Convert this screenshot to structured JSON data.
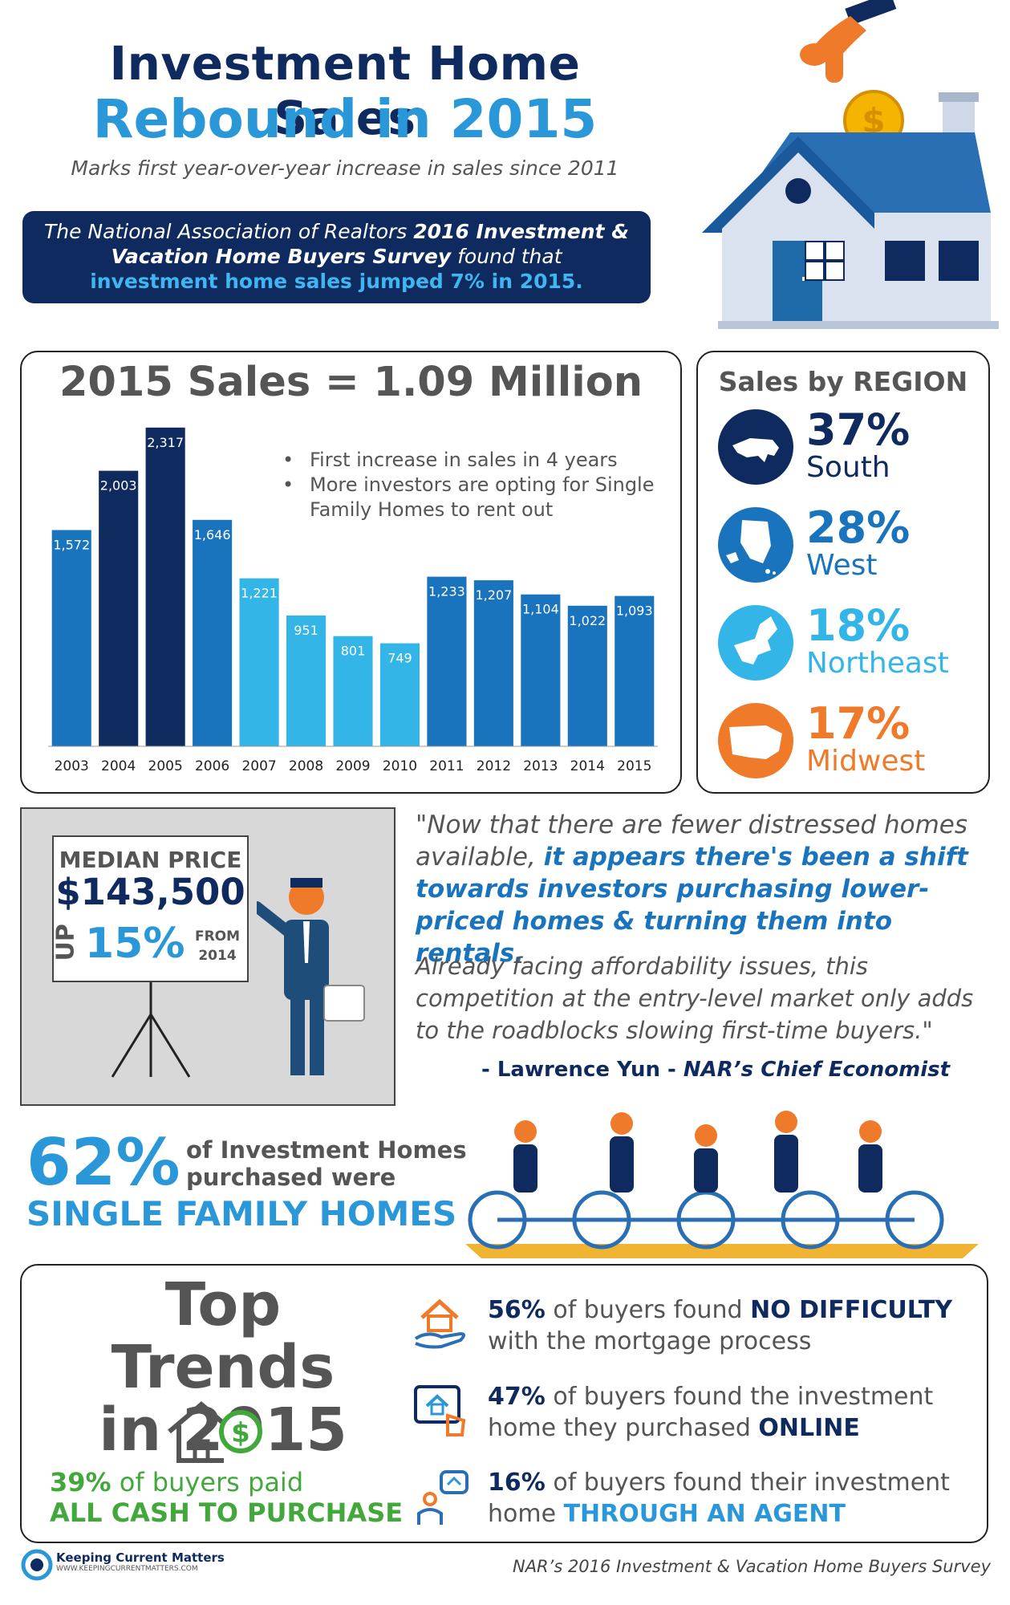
{
  "header": {
    "title": "Investment Home Sales",
    "subtitle": "Rebound in 2015",
    "tagline": "Marks first year-over-year increase in sales since 2011"
  },
  "banner": {
    "line1_a": "The National Association of Realtors ",
    "line1_b": "2016 Investment &",
    "line2_a": "Vacation Home Buyers Survey",
    "line2_b": " found that",
    "line3": "investment home sales jumped 7% in 2015."
  },
  "sales_panel": {
    "title": "2015 Sales = 1.09 Million",
    "notes": [
      "First increase in sales in 4 years",
      "More investors are opting for Single Family Homes to rent out"
    ]
  },
  "chart_data": {
    "type": "bar",
    "categories": [
      "2003",
      "2004",
      "2005",
      "2006",
      "2007",
      "2008",
      "2009",
      "2010",
      "2011",
      "2012",
      "2013",
      "2014",
      "2015"
    ],
    "values": [
      1572,
      2003,
      2317,
      1646,
      1221,
      951,
      801,
      749,
      1233,
      1207,
      1104,
      1022,
      1093
    ],
    "labels": [
      "1,572",
      "2,003",
      "2,317",
      "1,646",
      "1,221",
      "951",
      "801",
      "749",
      "1,233",
      "1,207",
      "1,104",
      "1,022",
      "1,093"
    ],
    "colors": [
      "#1a73bd",
      "#0f2a5e",
      "#0f2a5e",
      "#1a73bd",
      "#33b5e8",
      "#33b5e8",
      "#33b5e8",
      "#33b5e8",
      "#1a73bd",
      "#1a73bd",
      "#1a73bd",
      "#1a73bd",
      "#1a73bd"
    ],
    "ylim": [
      0,
      2450
    ]
  },
  "regions": {
    "title": "Sales by REGION",
    "items": [
      {
        "pct": "37%",
        "name": "South",
        "color": "#0f2a5e"
      },
      {
        "pct": "28%",
        "name": "West",
        "color": "#1a73bd"
      },
      {
        "pct": "18%",
        "name": "Northeast",
        "color": "#33b5e8"
      },
      {
        "pct": "17%",
        "name": "Midwest",
        "color": "#ee7a2a"
      }
    ]
  },
  "median": {
    "label": "MEDIAN PRICE",
    "price": "$143,500",
    "up": "UP",
    "pct": "15%",
    "from1": "FROM",
    "from2": "2014"
  },
  "quote": {
    "p1_a": "\"Now that there are fewer distressed homes available, ",
    "p1_b": "it appears there's been a shift towards investors purchasing lower-priced homes & turning them into rentals.",
    "p2": "Already facing affordability issues, this competition at the entry-level market only adds to the roadblocks slowing first-time buyers.\"",
    "author": "- Lawrence Yun - ",
    "author_title": "NAR’s Chief Economist"
  },
  "single_family": {
    "pct": "62%",
    "line1": "of Investment Homes",
    "line2": "purchased were",
    "big": "SINGLE FAMILY HOMES"
  },
  "trends": {
    "title1": "Top Trends",
    "title2": "in 2015",
    "cash_pct": "39%",
    "cash_a": " of buyers paid",
    "cash_b": "ALL CASH TO PURCHASE",
    "items": [
      {
        "pct": "56%",
        "a": " of buyers found ",
        "key": "NO DIFFICULTY",
        "b": "with the mortgage process",
        "icon": "house-in-hand-icon"
      },
      {
        "pct": "47%",
        "a": " of buyers found the investment",
        "b": "home they purchased ",
        "key": "ONLINE",
        "icon": "tablet-house-icon"
      },
      {
        "pct": "16%",
        "a": " of buyers found their investment",
        "b": "home ",
        "key": "THROUGH AN AGENT",
        "icon": "agent-icon"
      }
    ]
  },
  "footer": {
    "brand": "Keeping Current Matters",
    "url": "WWW.KEEPINGCURRENTMATTERS.COM",
    "source": "NAR’s 2016 Investment & Vacation Home Buyers Survey"
  }
}
